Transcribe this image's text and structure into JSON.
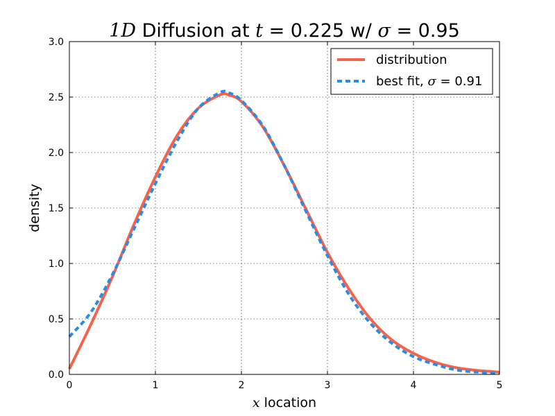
{
  "chart_data": {
    "type": "line",
    "title": {
      "math_1D": "1D",
      "text_1": " Diffusion at ",
      "math_t": "t",
      "eq_1": " = ",
      "t_value": "0.225",
      "text_2": " w/ ",
      "math_sigma": "σ",
      "eq_2": " = ",
      "sigma_value": "0.95"
    },
    "xlabel": {
      "math": "x",
      "text": " location"
    },
    "ylabel": "density",
    "xlim": [
      0,
      5
    ],
    "ylim": [
      0,
      3.0
    ],
    "xticks": [
      0,
      1,
      2,
      3,
      4,
      5
    ],
    "xtick_labels": [
      "0",
      "1",
      "2",
      "3",
      "4",
      "5"
    ],
    "yticks": [
      0,
      0.5,
      1.0,
      1.5,
      2.0,
      2.5,
      3.0
    ],
    "ytick_labels": [
      "0.0",
      "0.5",
      "1.0",
      "1.5",
      "2.0",
      "2.5",
      "3.0"
    ],
    "grid": true,
    "legend_placement": "upper-right",
    "series": [
      {
        "name": "distribution",
        "style": "solid",
        "color": "#f4634a",
        "x": [
          0,
          0.25,
          0.5,
          0.75,
          1.0,
          1.25,
          1.5,
          1.75,
          1.85,
          2.0,
          2.25,
          2.5,
          2.75,
          3.0,
          3.25,
          3.5,
          3.75,
          4.0,
          4.25,
          4.5,
          4.75,
          5.0
        ],
        "y": [
          0.05,
          0.45,
          0.88,
          1.35,
          1.78,
          2.15,
          2.4,
          2.52,
          2.52,
          2.46,
          2.23,
          1.88,
          1.49,
          1.1,
          0.77,
          0.5,
          0.31,
          0.19,
          0.11,
          0.06,
          0.035,
          0.02
        ]
      },
      {
        "name": "best fit, ",
        "legend_math": "σ",
        "legend_eq": " = ",
        "legend_value": "0.91",
        "style": "dashed",
        "color": "#2a8be8",
        "x": [
          0,
          0.25,
          0.5,
          0.75,
          1.0,
          1.25,
          1.5,
          1.75,
          1.85,
          2.0,
          2.25,
          2.5,
          2.75,
          3.0,
          3.25,
          3.5,
          3.75,
          4.0,
          4.25,
          4.5,
          4.75,
          5.0
        ],
        "y": [
          0.34,
          0.56,
          0.9,
          1.31,
          1.72,
          2.1,
          2.4,
          2.54,
          2.54,
          2.47,
          2.24,
          1.88,
          1.47,
          1.07,
          0.72,
          0.46,
          0.28,
          0.16,
          0.09,
          0.04,
          0.02,
          0.01
        ]
      }
    ]
  }
}
